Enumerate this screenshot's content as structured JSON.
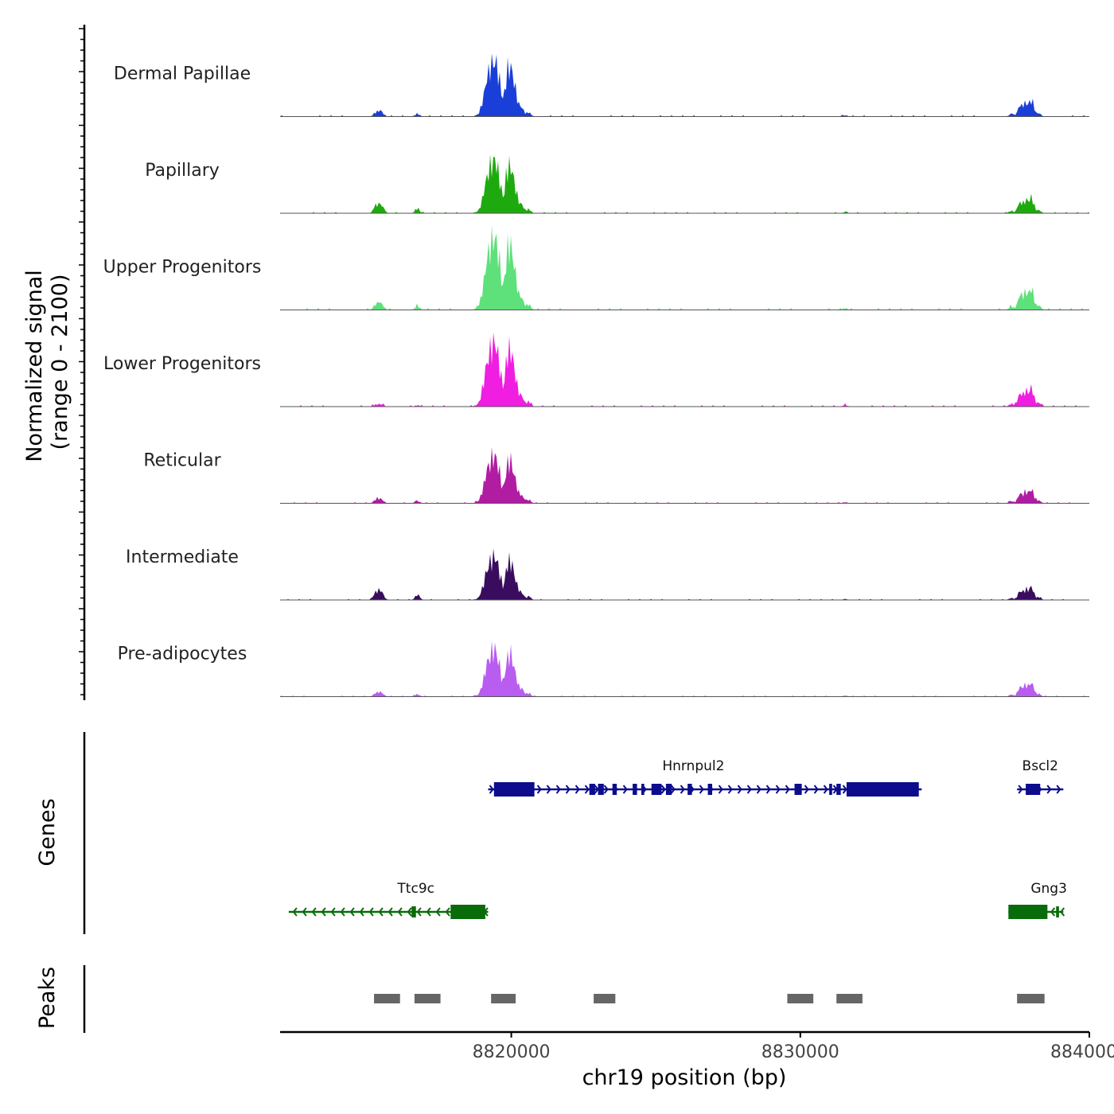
{
  "chart_data": {
    "type": "area",
    "xlabel": "chr19 position (bp)",
    "ylabel": [
      "Normalized signal",
      "(range 0 - 2100)"
    ],
    "signal_range": [
      0,
      2100
    ],
    "xlim": [
      8812000,
      8840000
    ],
    "x_ticks": [
      8820000,
      8830000,
      8840000
    ],
    "x_tick_labels": [
      "8820000",
      "8830000",
      "8840000"
    ],
    "tracks": [
      {
        "name": "Dermal Papillae",
        "color": "#1a3fd9",
        "scale": 1.0,
        "side": 0.3
      },
      {
        "name": "Papillary",
        "color": "#1eaa0e",
        "scale": 0.95,
        "side": 0.55
      },
      {
        "name": "Upper Progenitors",
        "color": "#5ee07a",
        "scale": 1.3,
        "side": 0.3
      },
      {
        "name": "Lower Progenitors",
        "color": "#f01ee0",
        "scale": 1.15,
        "side": 0.12
      },
      {
        "name": "Reticular",
        "color": "#b01ca2",
        "scale": 0.85,
        "side": 0.3
      },
      {
        "name": "Intermediate",
        "color": "#3a0c5e",
        "scale": 0.78,
        "side": 0.7
      },
      {
        "name": "Pre-adipocytes",
        "color": "#b95cf0",
        "scale": 0.85,
        "side": 0.3
      }
    ],
    "peak_positions": [
      {
        "x": 8815300,
        "h": 0.9
      },
      {
        "x": 8815450,
        "h": 1.0
      },
      {
        "x": 8815550,
        "h": 0.5
      },
      {
        "x": 8816750,
        "h": 0.7
      },
      {
        "x": 8818800,
        "h": 0.15
      },
      {
        "x": 8819000,
        "h": 1.2
      },
      {
        "x": 8819150,
        "h": 3.6
      },
      {
        "x": 8819300,
        "h": 4.6
      },
      {
        "x": 8819450,
        "h": 5.3
      },
      {
        "x": 8819600,
        "h": 3.3
      },
      {
        "x": 8819850,
        "h": 4.4
      },
      {
        "x": 8820000,
        "h": 4.6
      },
      {
        "x": 8820150,
        "h": 2.4
      },
      {
        "x": 8820350,
        "h": 1.1
      },
      {
        "x": 8820600,
        "h": 0.5
      },
      {
        "x": 8831550,
        "h": 0.15
      },
      {
        "x": 8837300,
        "h": 0.3
      },
      {
        "x": 8837600,
        "h": 1.3
      },
      {
        "x": 8837800,
        "h": 1.5
      },
      {
        "x": 8838000,
        "h": 1.9
      },
      {
        "x": 8838250,
        "h": 0.4
      }
    ],
    "genes": [
      {
        "name": "Hnrnpul2",
        "strand": "+",
        "color": "#0c0c8c",
        "row": 1,
        "start": 8819200,
        "end": 8834200,
        "label_x": 8826300,
        "exons": [
          [
            8819400,
            8820800
          ],
          [
            8822700,
            8822900
          ],
          [
            8823000,
            8823200
          ],
          [
            8823500,
            8823650
          ],
          [
            8824200,
            8824350
          ],
          [
            8824500,
            8824600
          ],
          [
            8824850,
            8825200
          ],
          [
            8825350,
            8825550
          ],
          [
            8826100,
            8826250
          ],
          [
            8826800,
            8826950
          ],
          [
            8829800,
            8830050
          ],
          [
            8831000,
            8831100
          ],
          [
            8831250,
            8831400
          ],
          [
            8831600,
            8834100
          ]
        ]
      },
      {
        "name": "Bscl2",
        "strand": "+",
        "color": "#0c0c8c",
        "row": 1,
        "start": 8837500,
        "end": 8839100,
        "label_x": 8838300,
        "exons": [
          [
            8837800,
            8838300
          ]
        ]
      },
      {
        "name": "Ttc9c",
        "strand": "-",
        "color": "#0a6b0a",
        "row": 2,
        "start": 8812300,
        "end": 8819200,
        "label_x": 8816700,
        "exons": [
          [
            8816550,
            8816700
          ],
          [
            8817900,
            8819100
          ]
        ]
      },
      {
        "name": "Gng3",
        "strand": "-",
        "color": "#0a6b0a",
        "row": 2,
        "start": 8837200,
        "end": 8839100,
        "label_x": 8838600,
        "exons": [
          [
            8837200,
            8838550
          ],
          [
            8838850,
            8838950
          ]
        ]
      }
    ],
    "peaks": [
      [
        8815250,
        8816150
      ],
      [
        8816650,
        8817550
      ],
      [
        8819300,
        8820150
      ],
      [
        8822850,
        8823600
      ],
      [
        8829550,
        8830450
      ],
      [
        8831250,
        8832150
      ],
      [
        8837500,
        8838450
      ]
    ],
    "panel_titles": [
      "Genes",
      "Peaks"
    ]
  }
}
